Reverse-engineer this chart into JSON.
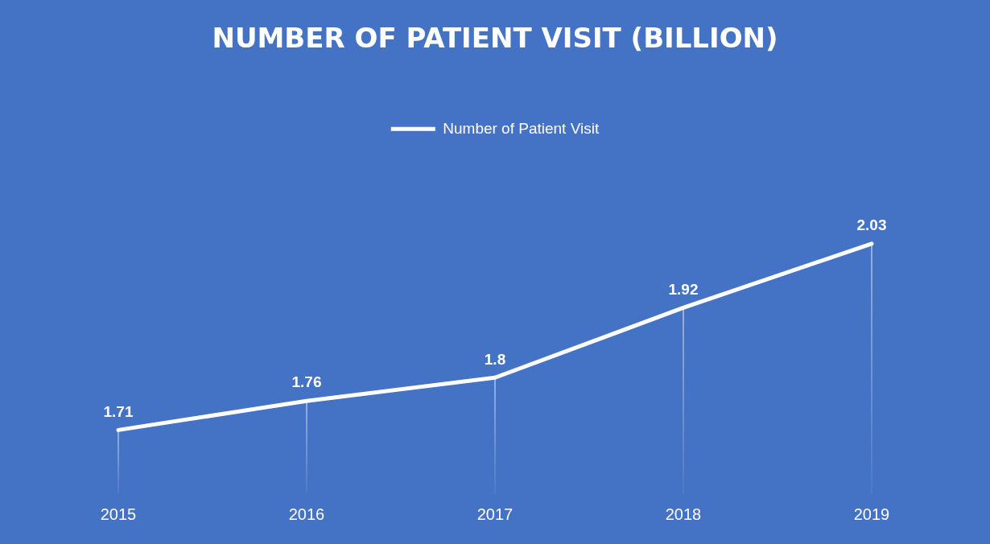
{
  "chart_data": {
    "type": "line",
    "title": "NUMBER OF PATIENT VISIT (BILLION)",
    "categories": [
      "2015",
      "2016",
      "2017",
      "2018",
      "2019"
    ],
    "series": [
      {
        "name": "Number of Patient Visit",
        "color": "#ffffff",
        "values": [
          1.71,
          1.76,
          1.8,
          1.92,
          2.03
        ]
      }
    ],
    "data_labels": true,
    "legend": "top",
    "grid": "x",
    "line_style": "solid"
  }
}
